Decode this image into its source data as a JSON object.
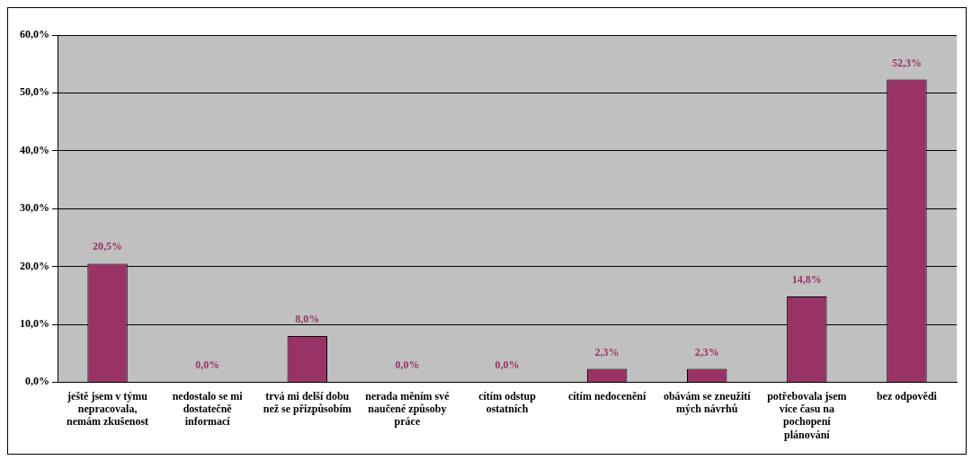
{
  "chart_data": {
    "type": "bar",
    "categories": [
      "ještě jsem v týmu nepracovala, nemám zkušenost",
      "nedostalo se mi dostatečně informací",
      "trvá mi delší dobu než se přizpůsobím",
      "nerada měním své naučené způsoby práce",
      "cítím odstup ostatních",
      "cítím nedocenění",
      "obávám se zneužití mých návrhů",
      "potřebovala jsem více času na pochopení plánování",
      "bez odpovědi"
    ],
    "values": [
      20.5,
      0,
      8.0,
      0,
      0,
      2.3,
      2.3,
      14.8,
      52.3
    ],
    "value_labels": [
      "20,5%",
      "0,0%",
      "8,0%",
      "0,0%",
      "0,0%",
      "2,3%",
      "2,3%",
      "14,8%",
      "52,3%"
    ],
    "color": "#993366",
    "ylim": [
      0,
      60
    ],
    "yticks": [
      {
        "value": 0,
        "label": "0,0%"
      },
      {
        "value": 10,
        "label": "10,0%"
      },
      {
        "value": 20,
        "label": "20,0%"
      },
      {
        "value": 30,
        "label": "30,0%"
      },
      {
        "value": 40,
        "label": "40,0%"
      },
      {
        "value": 50,
        "label": "50,0%"
      },
      {
        "value": 60,
        "label": "60,0%"
      }
    ],
    "grid": "y",
    "legend": false
  }
}
